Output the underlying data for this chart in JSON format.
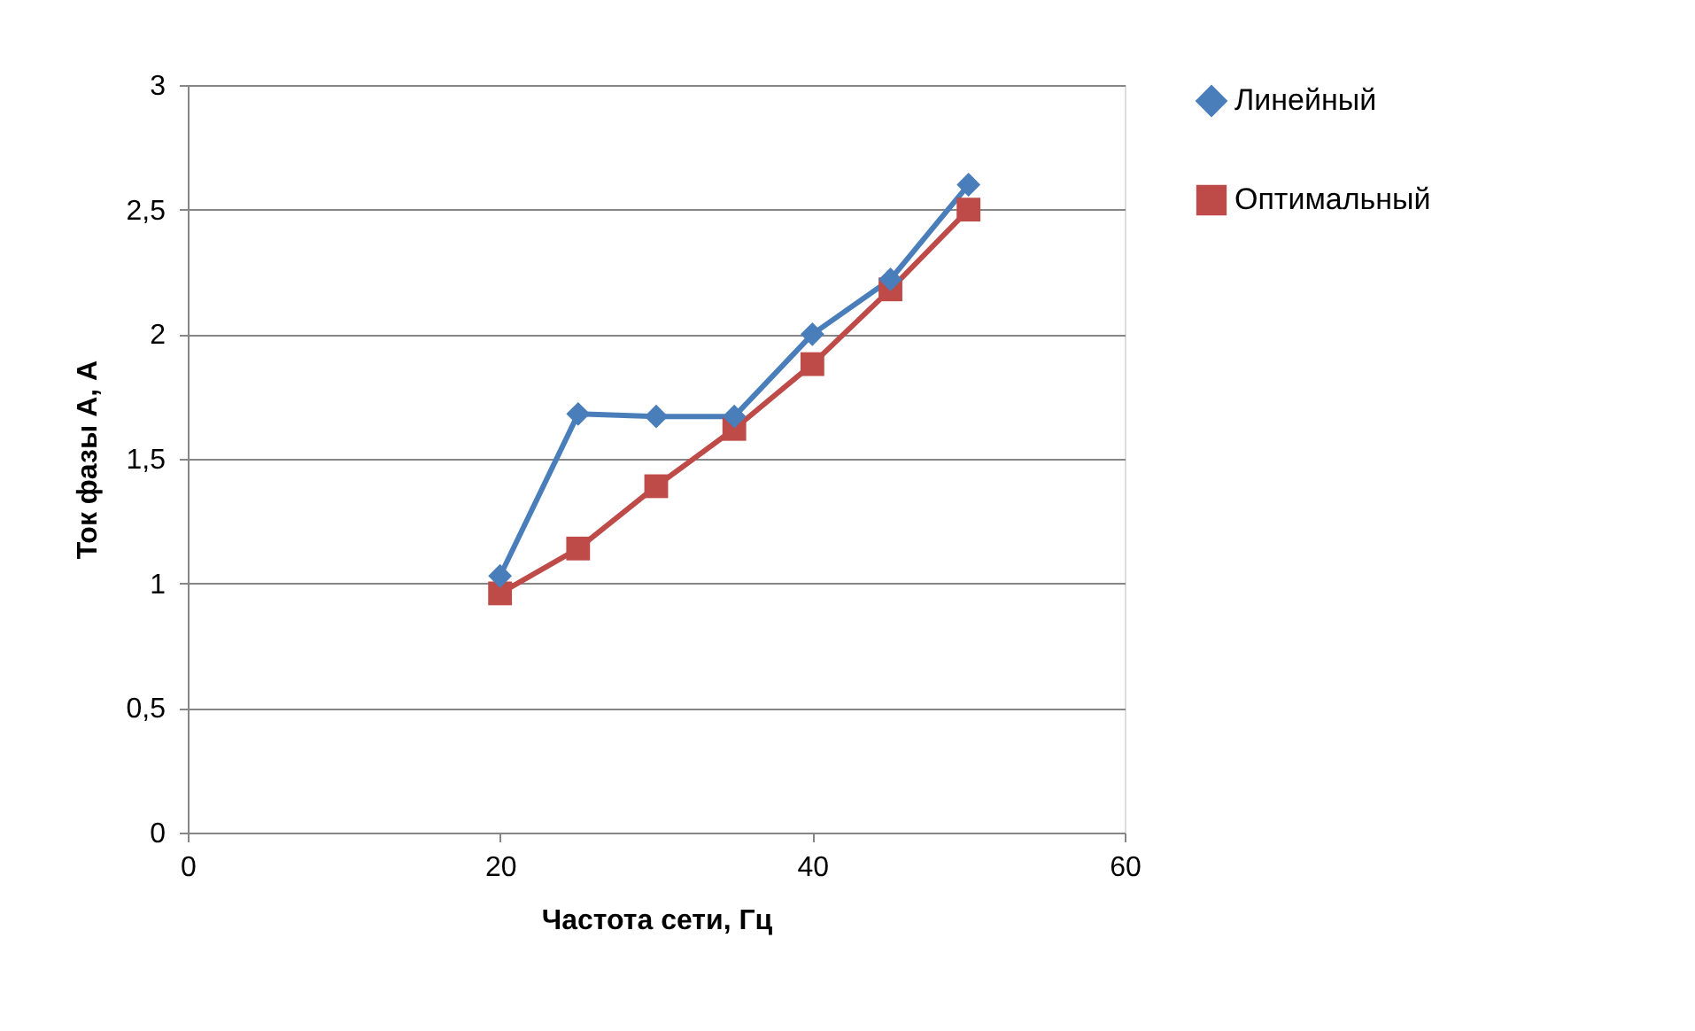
{
  "chart_data": {
    "type": "line",
    "xlabel": "Частота сети, Гц",
    "ylabel": "Ток фазы А, А",
    "x": [
      20,
      25,
      30,
      35,
      40,
      45,
      50
    ],
    "series": [
      {
        "name": "Линейный",
        "color": "#4a7ebb",
        "marker": "diamond",
        "values": [
          1.03,
          1.68,
          1.67,
          1.67,
          2.0,
          2.22,
          2.6
        ]
      },
      {
        "name": "Оптимальный",
        "color": "#be4b48",
        "marker": "square",
        "values": [
          0.96,
          1.14,
          1.39,
          1.62,
          1.88,
          2.18,
          2.5
        ]
      }
    ],
    "xlim": [
      0,
      60
    ],
    "xticks": [
      0,
      20,
      40,
      60
    ],
    "ylim": [
      0,
      3
    ],
    "yticks": [
      0,
      {
        "value": 0.5,
        "label": "0,5"
      },
      1,
      {
        "value": 1.5,
        "label": "1,5"
      },
      2,
      {
        "value": 2.5,
        "label": "2,5"
      },
      3
    ],
    "grid": "y",
    "legend": "right",
    "line_style": "solid"
  }
}
